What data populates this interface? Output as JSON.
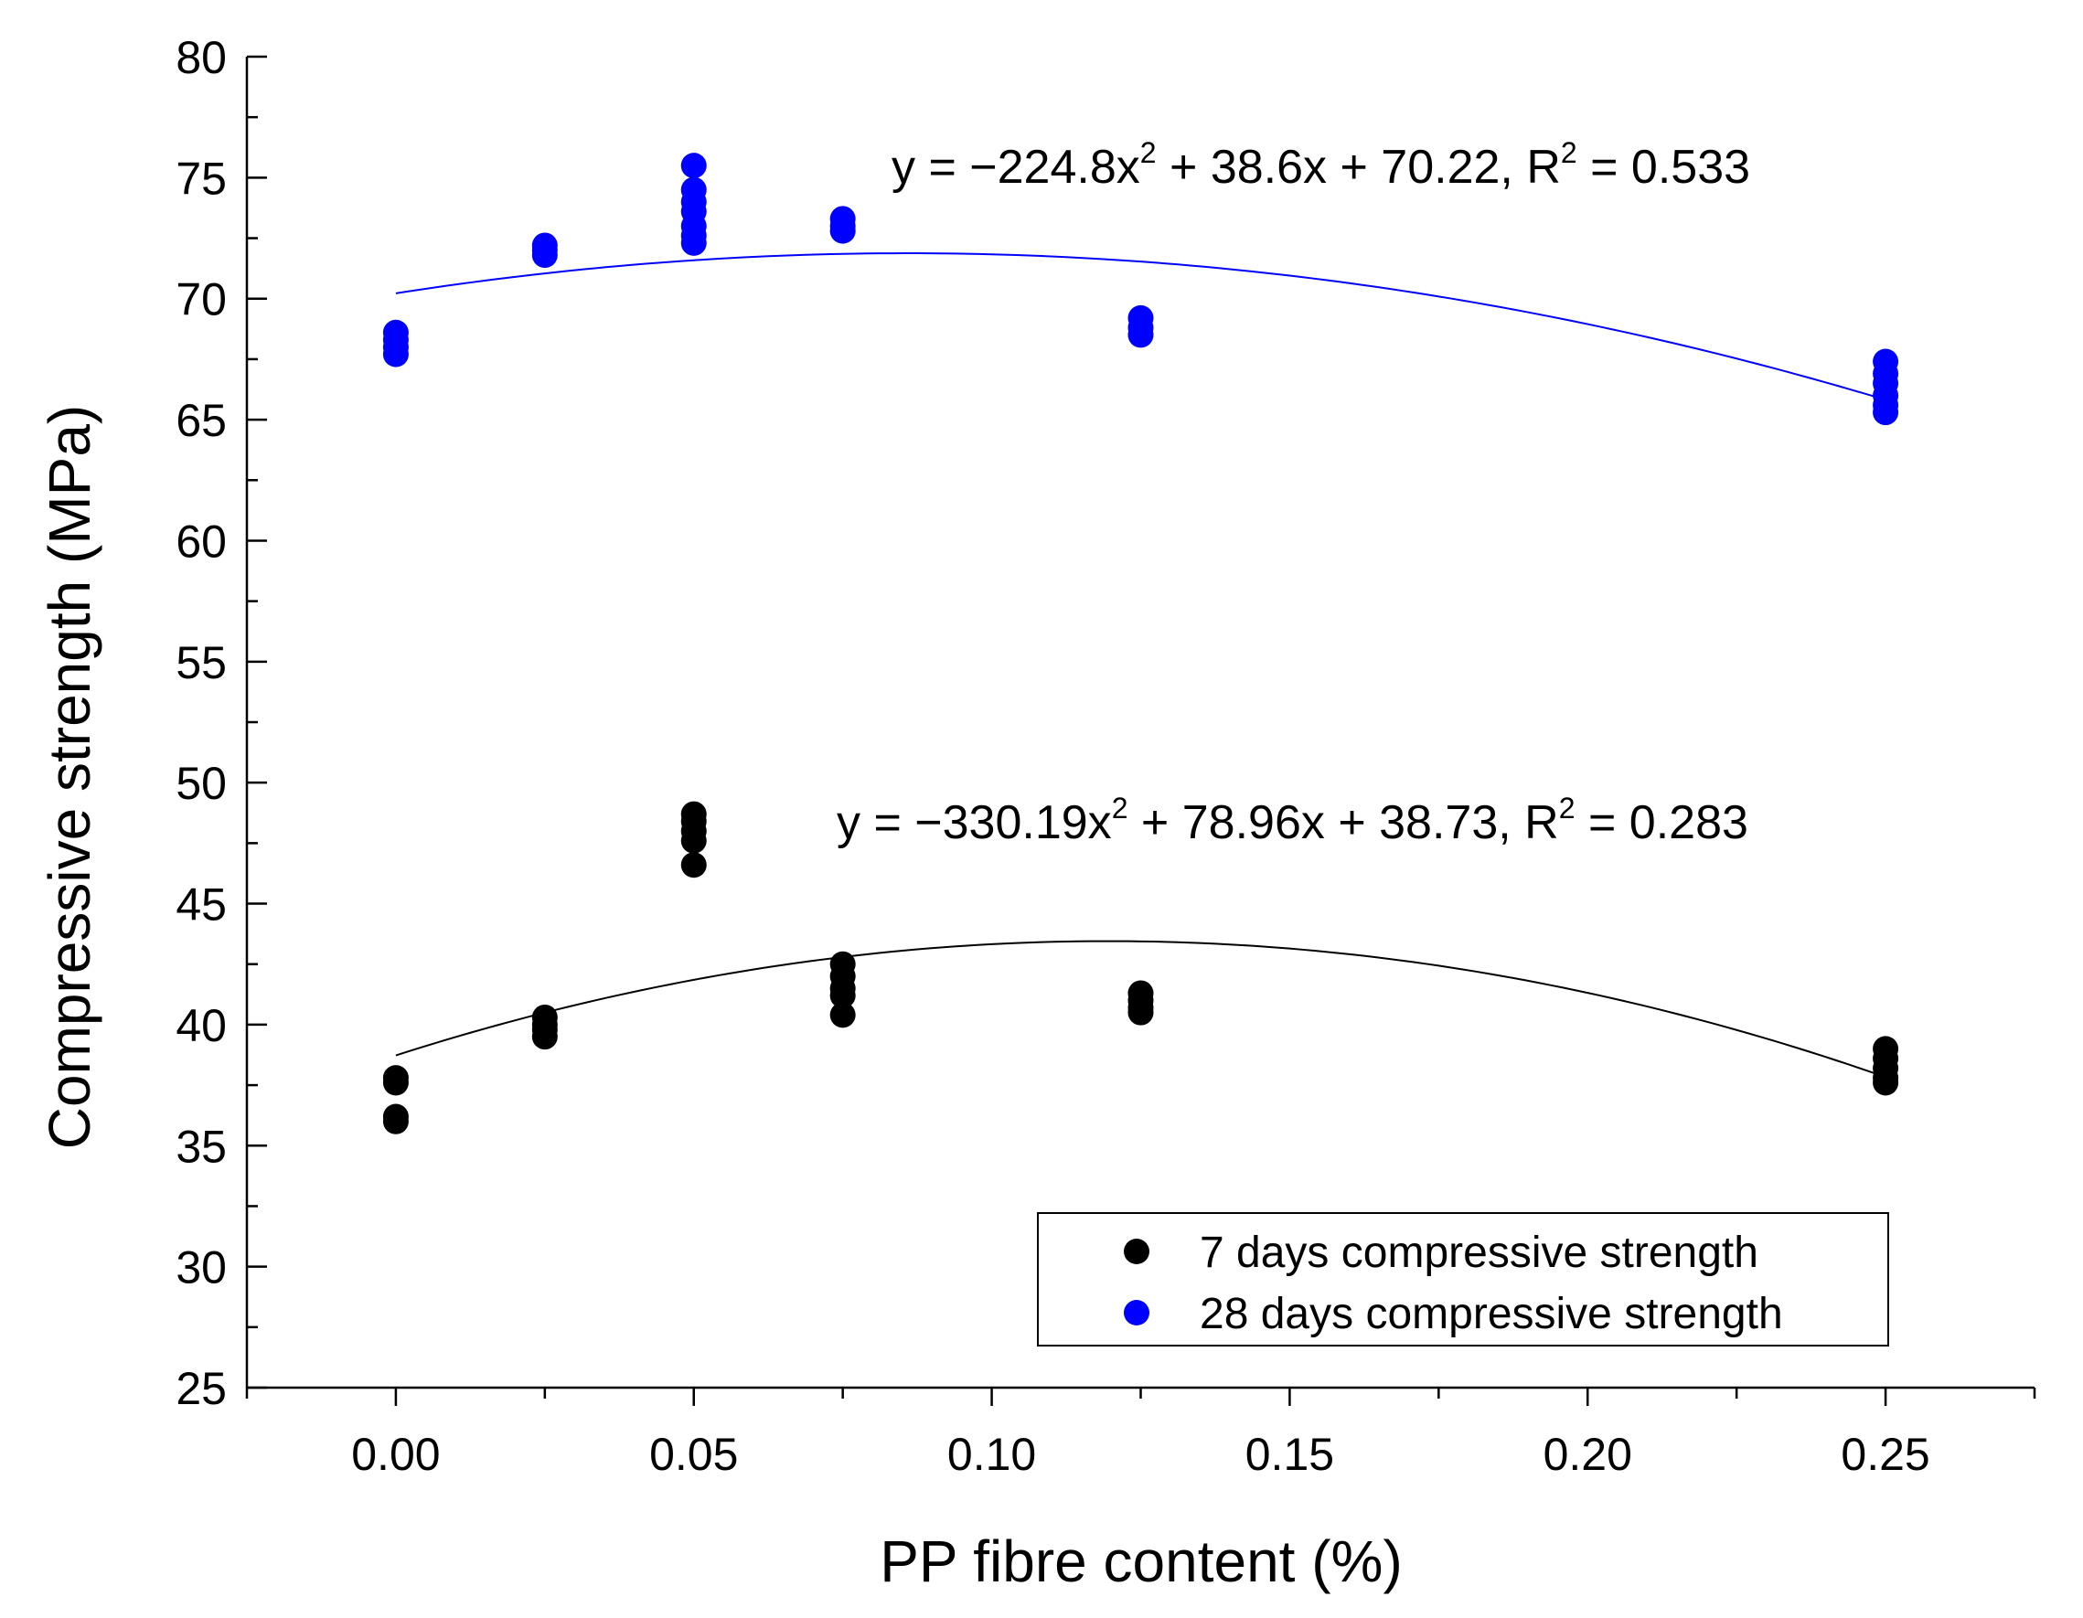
{
  "chart_data": {
    "type": "scatter",
    "title": "",
    "xlabel": "PP fibre content (%)",
    "ylabel": "Compressive strength (MPa)",
    "xlim": [
      -0.025,
      0.275
    ],
    "ylim": [
      25,
      80
    ],
    "xticks": [
      0.0,
      0.05,
      0.1,
      0.15,
      0.2,
      0.25
    ],
    "xtick_labels": [
      "0.00",
      "0.05",
      "0.10",
      "0.15",
      "0.20",
      "0.25"
    ],
    "yticks": [
      25,
      30,
      35,
      40,
      45,
      50,
      55,
      60,
      65,
      70,
      75,
      80
    ],
    "ytick_labels": [
      "25",
      "30",
      "35",
      "40",
      "45",
      "50",
      "55",
      "60",
      "65",
      "70",
      "75",
      "80"
    ],
    "grid": false,
    "legend_position": "bottom-right",
    "series": [
      {
        "name": "7 days compressive strength",
        "color": "#000000",
        "points": [
          [
            0.0,
            37.8
          ],
          [
            0.0,
            37.6
          ],
          [
            0.0,
            36.2
          ],
          [
            0.0,
            36.0
          ],
          [
            0.025,
            40.3
          ],
          [
            0.025,
            40.0
          ],
          [
            0.025,
            39.8
          ],
          [
            0.025,
            39.5
          ],
          [
            0.05,
            48.7
          ],
          [
            0.05,
            48.4
          ],
          [
            0.05,
            48.0
          ],
          [
            0.05,
            47.6
          ],
          [
            0.05,
            46.6
          ],
          [
            0.075,
            42.5
          ],
          [
            0.075,
            42.0
          ],
          [
            0.075,
            41.5
          ],
          [
            0.075,
            41.2
          ],
          [
            0.075,
            40.4
          ],
          [
            0.125,
            41.3
          ],
          [
            0.125,
            41.0
          ],
          [
            0.125,
            40.7
          ],
          [
            0.125,
            40.5
          ],
          [
            0.25,
            39.0
          ],
          [
            0.25,
            38.6
          ],
          [
            0.25,
            38.2
          ],
          [
            0.25,
            37.8
          ],
          [
            0.25,
            37.6
          ]
        ],
        "fit": {
          "a": -330.19,
          "b": 78.96,
          "c": 38.73,
          "r2": 0.283
        },
        "equation": {
          "prefix": "y = −330.19x",
          "mid": " + 78.96x + 38.73, R",
          "suffix": " = 0.283",
          "exponent": "2"
        }
      },
      {
        "name": "28 days compressive strength",
        "color": "#0000ff",
        "points": [
          [
            0.0,
            68.6
          ],
          [
            0.0,
            68.3
          ],
          [
            0.0,
            68.0
          ],
          [
            0.0,
            67.7
          ],
          [
            0.025,
            72.2
          ],
          [
            0.025,
            72.0
          ],
          [
            0.025,
            71.8
          ],
          [
            0.05,
            75.5
          ],
          [
            0.05,
            74.5
          ],
          [
            0.05,
            74.0
          ],
          [
            0.05,
            73.6
          ],
          [
            0.05,
            73.0
          ],
          [
            0.05,
            72.6
          ],
          [
            0.05,
            72.3
          ],
          [
            0.075,
            73.3
          ],
          [
            0.075,
            73.0
          ],
          [
            0.075,
            72.8
          ],
          [
            0.125,
            69.2
          ],
          [
            0.125,
            68.8
          ],
          [
            0.125,
            68.5
          ],
          [
            0.25,
            67.4
          ],
          [
            0.25,
            66.9
          ],
          [
            0.25,
            66.5
          ],
          [
            0.25,
            66.0
          ],
          [
            0.25,
            65.6
          ],
          [
            0.25,
            65.3
          ]
        ],
        "fit": {
          "a": -224.8,
          "b": 38.6,
          "c": 70.22,
          "r2": 0.533
        },
        "equation": {
          "prefix": "y = −224.8x",
          "mid": " + 38.6x + 70.22, R",
          "suffix": " = 0.533",
          "exponent": "2"
        }
      }
    ]
  }
}
